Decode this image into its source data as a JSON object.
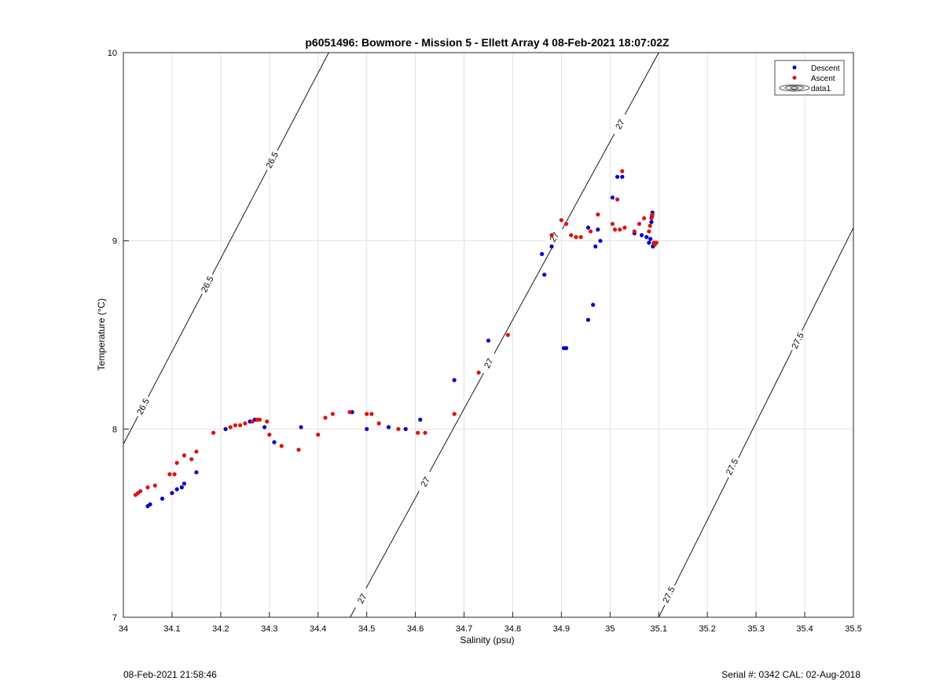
{
  "chart_data": {
    "type": "scatter",
    "title": "p6051496: Bowmore - Mission 5 - Ellett Array 4 08-Feb-2021 18:07:02Z",
    "xlabel": "Salinity (psu)",
    "ylabel": "Temperature (°C)",
    "xlim": [
      34,
      35.5
    ],
    "ylim": [
      7,
      10
    ],
    "x_ticks": [
      "34",
      "34.1",
      "34.2",
      "34.3",
      "34.4",
      "34.5",
      "34.6",
      "34.7",
      "34.8",
      "34.9",
      "35",
      "35.1",
      "35.2",
      "35.3",
      "35.4",
      "35.5"
    ],
    "y_ticks": [
      "7",
      "8",
      "9",
      "10"
    ],
    "grid": true,
    "legend_position": "top-right",
    "legend": [
      "Descent",
      "Ascent",
      "data1"
    ],
    "colors": {
      "Descent": "#0000cc",
      "Ascent": "#dd1111",
      "contour": "#000000"
    },
    "contours": [
      {
        "label": "26.5",
        "points": [
          [
            34,
            7.92
          ],
          [
            34.422,
            10
          ]
        ],
        "label_positions": [
          [
            34.04,
            8.12
          ],
          [
            34.172,
            8.77
          ],
          [
            34.305,
            9.43
          ]
        ]
      },
      {
        "label": "27",
        "points": [
          [
            34.466,
            7
          ],
          [
            35.1,
            10
          ]
        ],
        "label_positions": [
          [
            34.49,
            7.1
          ],
          [
            34.62,
            7.72
          ],
          [
            34.75,
            8.35
          ],
          [
            34.885,
            9.02
          ],
          [
            35.02,
            9.62
          ]
        ]
      },
      {
        "label": "27.5",
        "points": [
          [
            35.1,
            7
          ],
          [
            35.5,
            9.07
          ]
        ],
        "label_positions": [
          [
            35.12,
            7.12
          ],
          [
            35.25,
            7.8
          ],
          [
            35.385,
            8.47
          ]
        ]
      }
    ],
    "series": [
      {
        "name": "Descent",
        "points": [
          [
            34.05,
            7.59
          ],
          [
            34.055,
            7.6
          ],
          [
            34.08,
            7.63
          ],
          [
            34.1,
            7.66
          ],
          [
            34.11,
            7.68
          ],
          [
            34.12,
            7.69
          ],
          [
            34.125,
            7.71
          ],
          [
            34.15,
            7.77
          ],
          [
            34.21,
            8.0
          ],
          [
            34.26,
            8.04
          ],
          [
            34.27,
            8.05
          ],
          [
            34.29,
            8.01
          ],
          [
            34.31,
            7.93
          ],
          [
            34.365,
            8.01
          ],
          [
            34.47,
            8.09
          ],
          [
            34.5,
            8.0
          ],
          [
            34.545,
            8.01
          ],
          [
            34.58,
            8.0
          ],
          [
            34.61,
            8.05
          ],
          [
            34.68,
            8.26
          ],
          [
            34.75,
            8.47
          ],
          [
            34.86,
            8.93
          ],
          [
            34.865,
            8.82
          ],
          [
            34.88,
            8.97
          ],
          [
            34.905,
            8.43
          ],
          [
            34.91,
            8.43
          ],
          [
            34.955,
            8.58
          ],
          [
            34.955,
            9.07
          ],
          [
            34.965,
            8.66
          ],
          [
            34.97,
            8.97
          ],
          [
            34.975,
            9.06
          ],
          [
            34.98,
            9.0
          ],
          [
            35.005,
            9.23
          ],
          [
            35.015,
            9.34
          ],
          [
            35.025,
            9.34
          ],
          [
            35.05,
            9.04
          ],
          [
            35.065,
            9.03
          ],
          [
            35.075,
            9.02
          ],
          [
            35.08,
            8.99
          ],
          [
            35.083,
            9.01
          ],
          [
            35.085,
            9.1
          ],
          [
            35.086,
            9.13
          ],
          [
            35.087,
            9.15
          ],
          [
            35.088,
            8.97
          ],
          [
            35.09,
            8.98
          ]
        ]
      },
      {
        "name": "Ascent",
        "points": [
          [
            34.025,
            7.65
          ],
          [
            34.03,
            7.66
          ],
          [
            34.035,
            7.67
          ],
          [
            34.05,
            7.69
          ],
          [
            34.065,
            7.7
          ],
          [
            34.095,
            7.76
          ],
          [
            34.105,
            7.76
          ],
          [
            34.11,
            7.82
          ],
          [
            34.125,
            7.86
          ],
          [
            34.14,
            7.84
          ],
          [
            34.15,
            7.88
          ],
          [
            34.185,
            7.98
          ],
          [
            34.22,
            8.01
          ],
          [
            34.23,
            8.02
          ],
          [
            34.24,
            8.02
          ],
          [
            34.25,
            8.03
          ],
          [
            34.265,
            8.04
          ],
          [
            34.275,
            8.05
          ],
          [
            34.28,
            8.05
          ],
          [
            34.295,
            8.04
          ],
          [
            34.3,
            7.97
          ],
          [
            34.325,
            7.91
          ],
          [
            34.36,
            7.89
          ],
          [
            34.4,
            7.97
          ],
          [
            34.415,
            8.06
          ],
          [
            34.43,
            8.08
          ],
          [
            34.465,
            8.09
          ],
          [
            34.5,
            8.08
          ],
          [
            34.51,
            8.08
          ],
          [
            34.525,
            8.03
          ],
          [
            34.565,
            8.0
          ],
          [
            34.605,
            7.98
          ],
          [
            34.62,
            7.98
          ],
          [
            34.68,
            8.08
          ],
          [
            34.73,
            8.3
          ],
          [
            34.79,
            8.5
          ],
          [
            34.88,
            9.03
          ],
          [
            34.9,
            9.11
          ],
          [
            34.91,
            9.09
          ],
          [
            34.92,
            9.03
          ],
          [
            34.93,
            9.02
          ],
          [
            34.94,
            9.02
          ],
          [
            34.96,
            9.05
          ],
          [
            34.975,
            9.14
          ],
          [
            35.005,
            9.09
          ],
          [
            35.01,
            9.06
          ],
          [
            35.015,
            9.22
          ],
          [
            35.02,
            9.06
          ],
          [
            35.025,
            9.37
          ],
          [
            35.03,
            9.07
          ],
          [
            35.05,
            9.05
          ],
          [
            35.06,
            9.09
          ],
          [
            35.07,
            9.12
          ],
          [
            35.08,
            9.05
          ],
          [
            35.082,
            9.08
          ],
          [
            35.085,
            9.12
          ],
          [
            35.087,
            9.14
          ],
          [
            35.09,
            8.99
          ],
          [
            35.092,
            8.98
          ],
          [
            35.095,
            8.99
          ]
        ]
      }
    ]
  },
  "footer": {
    "timestamp": "08-Feb-2021 21:58:46",
    "serial": "Serial #: 0342  CAL: 02-Aug-2018"
  }
}
